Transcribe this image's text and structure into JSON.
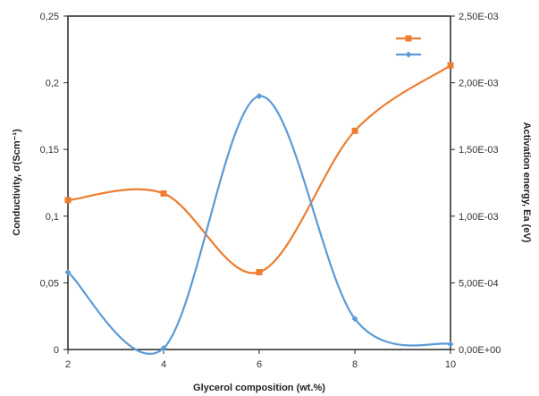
{
  "chart_data": {
    "type": "line",
    "title": "",
    "xlabel": "Glycerol composition (wt.%)",
    "ylabel_left": "Conductivity, σ(Scm⁻¹)",
    "ylabel_right": "Activation energy, Ea (eV)",
    "x": [
      2,
      4,
      6,
      8,
      10
    ],
    "xlim": [
      2,
      10
    ],
    "ylim_left": [
      0,
      0.25
    ],
    "ylim_right": [
      0,
      0.0025
    ],
    "x_ticks": [
      "2",
      "4",
      "6",
      "8",
      "10"
    ],
    "y_ticks_left": [
      "0",
      "0,05",
      "0,1",
      "0,15",
      "0,2",
      "0,25"
    ],
    "y_ticks_right": [
      "0,00E+00",
      "5,00E-04",
      "1,00E-03",
      "1,50E-03",
      "2,00E-03",
      "2,50E-03"
    ],
    "grid": false,
    "legend_position": "top-right",
    "series": [
      {
        "axis": "right",
        "color": "#ed7d31",
        "marker": "square",
        "values": [
          0.00112,
          0.00117,
          0.00058,
          0.00164,
          0.00213
        ]
      },
      {
        "axis": "left",
        "color": "#5b9bd5",
        "marker": "diamond",
        "values": [
          0.058,
          0.001,
          0.19,
          0.023,
          0.004
        ]
      }
    ]
  }
}
